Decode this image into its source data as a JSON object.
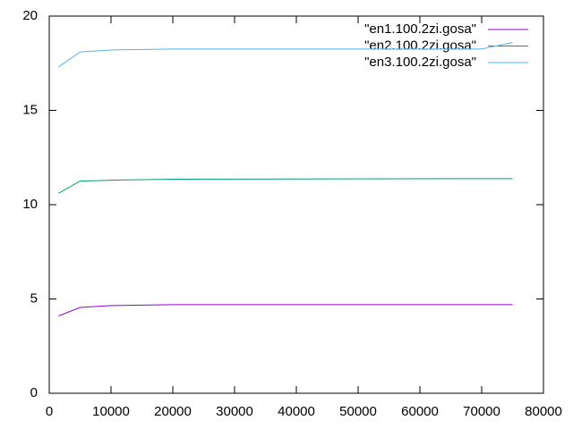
{
  "chart_data": {
    "type": "line",
    "x": [
      1500,
      5000,
      10000,
      20000,
      70000,
      75000
    ],
    "series": [
      {
        "name": "\"en1.100.2zi.gosa\"",
        "color": "#9400d3",
        "values": [
          4.1,
          4.55,
          4.65,
          4.7,
          4.7,
          4.7
        ]
      },
      {
        "name": "\"en2.100.2zi.gosa\"",
        "color": "#009e73",
        "values": [
          10.6,
          11.25,
          11.3,
          11.35,
          11.38,
          11.38
        ]
      },
      {
        "name": "\"en3.100.2zi.gosa\"",
        "color": "#56b4e9",
        "values": [
          17.3,
          18.1,
          18.2,
          18.25,
          18.25,
          18.6
        ]
      }
    ],
    "xlim": [
      0,
      80000
    ],
    "xticks": [
      0,
      10000,
      20000,
      30000,
      40000,
      50000,
      60000,
      70000,
      80000
    ],
    "ylim": [
      0,
      20
    ],
    "yticks": [
      0,
      5,
      10,
      15,
      20
    ],
    "legend": "top-right"
  }
}
